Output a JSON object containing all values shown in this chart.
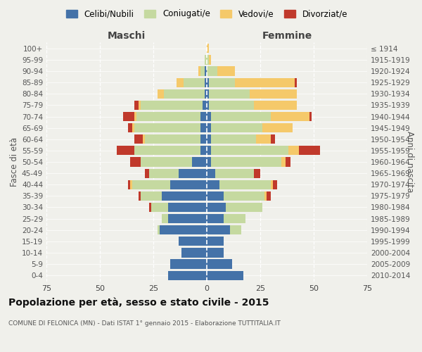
{
  "age_groups": [
    "0-4",
    "5-9",
    "10-14",
    "15-19",
    "20-24",
    "25-29",
    "30-34",
    "35-39",
    "40-44",
    "45-49",
    "50-54",
    "55-59",
    "60-64",
    "65-69",
    "70-74",
    "75-79",
    "80-84",
    "85-89",
    "90-94",
    "95-99",
    "100+"
  ],
  "birth_years": [
    "2010-2014",
    "2005-2009",
    "2000-2004",
    "1995-1999",
    "1990-1994",
    "1985-1989",
    "1980-1984",
    "1975-1979",
    "1970-1974",
    "1965-1969",
    "1960-1964",
    "1955-1959",
    "1950-1954",
    "1945-1949",
    "1940-1944",
    "1935-1939",
    "1930-1934",
    "1925-1929",
    "1920-1924",
    "1915-1919",
    "≤ 1914"
  ],
  "male": {
    "celibe": [
      18,
      17,
      12,
      13,
      22,
      18,
      18,
      21,
      17,
      13,
      7,
      3,
      3,
      3,
      3,
      2,
      1,
      1,
      1,
      0,
      0
    ],
    "coniugato": [
      0,
      0,
      0,
      0,
      1,
      3,
      8,
      10,
      18,
      14,
      24,
      31,
      26,
      31,
      30,
      29,
      19,
      10,
      2,
      1,
      0
    ],
    "vedovo": [
      0,
      0,
      0,
      0,
      0,
      0,
      0,
      0,
      1,
      0,
      0,
      0,
      1,
      1,
      1,
      1,
      3,
      3,
      1,
      0,
      0
    ],
    "divorziato": [
      0,
      0,
      0,
      0,
      0,
      0,
      1,
      1,
      1,
      2,
      5,
      8,
      4,
      2,
      5,
      2,
      0,
      0,
      0,
      0,
      0
    ]
  },
  "female": {
    "nubile": [
      17,
      12,
      8,
      8,
      11,
      8,
      9,
      8,
      6,
      4,
      2,
      2,
      2,
      2,
      2,
      1,
      1,
      1,
      0,
      0,
      0
    ],
    "coniugata": [
      0,
      0,
      0,
      0,
      5,
      10,
      17,
      19,
      24,
      18,
      33,
      36,
      21,
      24,
      28,
      21,
      19,
      12,
      5,
      1,
      0
    ],
    "vedova": [
      0,
      0,
      0,
      0,
      0,
      0,
      0,
      1,
      1,
      0,
      2,
      5,
      7,
      14,
      18,
      20,
      22,
      28,
      8,
      1,
      1
    ],
    "divorziata": [
      0,
      0,
      0,
      0,
      0,
      0,
      0,
      2,
      2,
      3,
      2,
      10,
      2,
      0,
      1,
      0,
      0,
      1,
      0,
      0,
      0
    ]
  },
  "colors": {
    "celibe": "#4472a8",
    "coniugato": "#c5d9a0",
    "vedovo": "#f5c96a",
    "divorziato": "#c0392b"
  },
  "title": "Popolazione per età, sesso e stato civile - 2015",
  "subtitle": "COMUNE DI FELONICA (MN) - Dati ISTAT 1° gennaio 2015 - Elaborazione TUTTITALIA.IT",
  "label_maschi": "Maschi",
  "label_femmine": "Femmine",
  "ylabel_left": "Fasce di età",
  "ylabel_right": "Anni di nascita",
  "xlim": 75,
  "bg_color": "#f0f0eb",
  "bar_height": 0.82,
  "legend_labels": [
    "Celibi/Nubili",
    "Coniugati/e",
    "Vedovi/e",
    "Divorziat/e"
  ]
}
